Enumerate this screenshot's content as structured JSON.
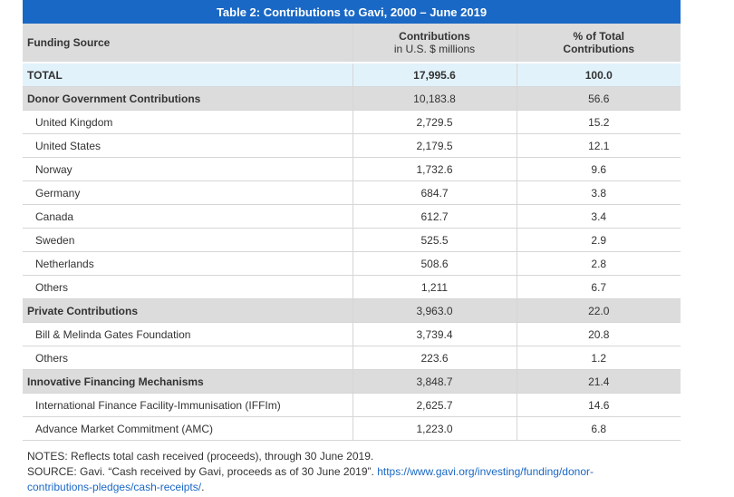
{
  "table": {
    "title": "Table 2: Contributions to Gavi, 2000 – June 2019",
    "header": {
      "col1": "Funding Source",
      "col2_line1": "Contributions",
      "col2_line2": "in U.S. $ millions",
      "col3_line1": "% of Total",
      "col3_line2": "Contributions"
    },
    "rows": [
      {
        "type": "total",
        "label": "TOTAL",
        "contribution": "17,995.6",
        "percent": "100.0"
      },
      {
        "type": "group",
        "label": "Donor Government Contributions",
        "contribution": "10,183.8",
        "percent": "56.6"
      },
      {
        "type": "item",
        "label": "United Kingdom",
        "contribution": "2,729.5",
        "percent": "15.2"
      },
      {
        "type": "item",
        "label": "United States",
        "contribution": "2,179.5",
        "percent": "12.1"
      },
      {
        "type": "item",
        "label": "Norway",
        "contribution": "1,732.6",
        "percent": "9.6"
      },
      {
        "type": "item",
        "label": "Germany",
        "contribution": "684.7",
        "percent": "3.8"
      },
      {
        "type": "item",
        "label": "Canada",
        "contribution": "612.7",
        "percent": "3.4"
      },
      {
        "type": "item",
        "label": "Sweden",
        "contribution": "525.5",
        "percent": "2.9"
      },
      {
        "type": "item",
        "label": "Netherlands",
        "contribution": "508.6",
        "percent": "2.8"
      },
      {
        "type": "item",
        "label": "Others",
        "contribution": "1,211",
        "percent": "6.7"
      },
      {
        "type": "group",
        "label": "Private Contributions",
        "contribution": "3,963.0",
        "percent": "22.0"
      },
      {
        "type": "item",
        "label": "Bill & Melinda Gates Foundation",
        "contribution": "3,739.4",
        "percent": "20.8"
      },
      {
        "type": "item",
        "label": "Others",
        "contribution": "223.6",
        "percent": "1.2"
      },
      {
        "type": "group",
        "label": "Innovative Financing Mechanisms",
        "contribution": "3,848.7",
        "percent": "21.4"
      },
      {
        "type": "item",
        "label": "International Finance Facility-Immunisation (IFFIm)",
        "contribution": "2,625.7",
        "percent": "14.6"
      },
      {
        "type": "item",
        "label": "Advance Market Commitment (AMC)",
        "contribution": "1,223.0",
        "percent": "6.8"
      }
    ]
  },
  "notes": {
    "note": "NOTES: Reflects total cash received (proceeds), through 30 June 2019.",
    "source_text": "SOURCE: Gavi. “Cash received by Gavi, proceeds as of 30 June 2019”. ",
    "source_link_line1": "https://www.gavi.org/investing/funding/donor-",
    "source_link_line2": "contributions-pledges/cash-receipts/",
    "source_tail": "."
  }
}
